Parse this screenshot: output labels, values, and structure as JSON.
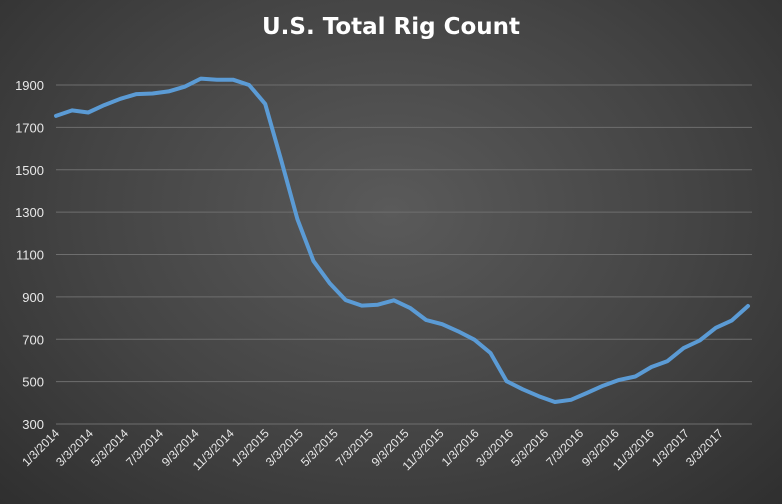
{
  "chart_data": {
    "type": "line",
    "title": "U.S. Total Rig Count",
    "xlabel": "",
    "ylabel": "",
    "ylim": [
      300,
      2000
    ],
    "yticks": [
      300,
      500,
      700,
      900,
      1100,
      1300,
      1500,
      1700,
      1900
    ],
    "grid": true,
    "legend": "none",
    "line_color": "#5b9bd5",
    "xtick_labels": [
      "1/3/2014",
      "3/3/2014",
      "5/3/2014",
      "7/3/2014",
      "9/3/2014",
      "11/3/2014",
      "1/3/2015",
      "3/3/2015",
      "5/3/2015",
      "7/3/2015",
      "9/3/2015",
      "11/3/2015",
      "1/3/2016",
      "3/3/2016",
      "5/3/2016",
      "7/3/2016",
      "9/3/2016",
      "11/3/2016",
      "1/3/2017",
      "3/3/2017"
    ],
    "series": [
      {
        "name": "",
        "x": [
          "2014-01-03",
          "2014-01-31",
          "2014-02-28",
          "2014-03-28",
          "2014-04-25",
          "2014-05-23",
          "2014-06-20",
          "2014-07-18",
          "2014-08-15",
          "2014-09-12",
          "2014-10-10",
          "2014-11-07",
          "2014-12-05",
          "2015-01-02",
          "2015-01-30",
          "2015-02-27",
          "2015-03-27",
          "2015-04-24",
          "2015-05-22",
          "2015-06-19",
          "2015-07-17",
          "2015-08-14",
          "2015-09-11",
          "2015-10-09",
          "2015-11-06",
          "2015-12-04",
          "2016-01-01",
          "2016-01-29",
          "2016-02-26",
          "2016-03-25",
          "2016-04-22",
          "2016-05-20",
          "2016-06-17",
          "2016-07-15",
          "2016-08-12",
          "2016-09-09",
          "2016-10-07",
          "2016-11-04",
          "2016-12-02",
          "2016-12-30",
          "2017-01-27",
          "2017-02-24",
          "2017-03-24",
          "2017-04-21"
        ],
        "values": [
          1754,
          1780,
          1770,
          1805,
          1835,
          1857,
          1860,
          1870,
          1892,
          1930,
          1925,
          1925,
          1900,
          1811,
          1543,
          1267,
          1069,
          965,
          885,
          859,
          863,
          884,
          848,
          791,
          771,
          737,
          698,
          635,
          502,
          464,
          431,
          404,
          414,
          447,
          481,
          508,
          524,
          569,
          597,
          658,
          694,
          754,
          789,
          857
        ]
      }
    ]
  }
}
